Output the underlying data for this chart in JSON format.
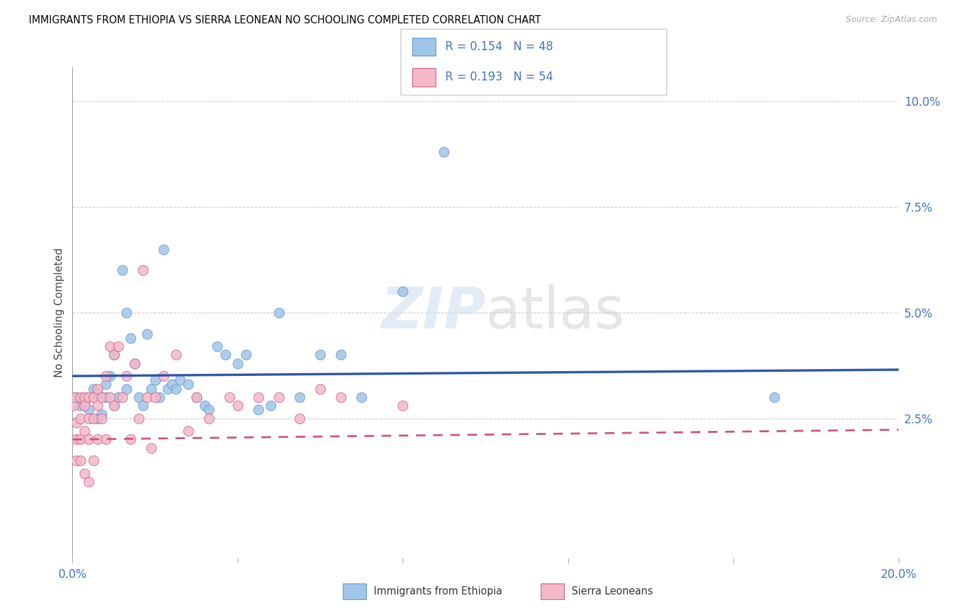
{
  "title": "IMMIGRANTS FROM ETHIOPIA VS SIERRA LEONEAN NO SCHOOLING COMPLETED CORRELATION CHART",
  "source": "Source: ZipAtlas.com",
  "ylabel": "No Schooling Completed",
  "xlim": [
    0.0,
    0.2
  ],
  "ylim": [
    -0.008,
    0.108
  ],
  "yticks_right": [
    0.025,
    0.05,
    0.075,
    0.1
  ],
  "ytick_labels_right": [
    "2.5%",
    "5.0%",
    "7.5%",
    "10.0%"
  ],
  "color_ethiopia": "#9fc5e8",
  "color_sierra": "#f4b8c8",
  "color_eth_border": "#6699cc",
  "color_sle_border": "#cc6688",
  "color_eth_line": "#3355aa",
  "color_sle_line": "#cc5577",
  "ethiopia_x": [
    0.001,
    0.002,
    0.003,
    0.004,
    0.005,
    0.006,
    0.006,
    0.007,
    0.008,
    0.008,
    0.009,
    0.01,
    0.01,
    0.011,
    0.012,
    0.013,
    0.013,
    0.014,
    0.015,
    0.016,
    0.017,
    0.018,
    0.019,
    0.02,
    0.021,
    0.022,
    0.023,
    0.024,
    0.025,
    0.026,
    0.028,
    0.03,
    0.032,
    0.033,
    0.035,
    0.037,
    0.04,
    0.042,
    0.045,
    0.048,
    0.05,
    0.055,
    0.06,
    0.065,
    0.07,
    0.08,
    0.09,
    0.17
  ],
  "ethiopia_y": [
    0.03,
    0.028,
    0.029,
    0.027,
    0.032,
    0.025,
    0.031,
    0.026,
    0.03,
    0.033,
    0.035,
    0.028,
    0.04,
    0.03,
    0.06,
    0.05,
    0.032,
    0.044,
    0.038,
    0.03,
    0.028,
    0.045,
    0.032,
    0.034,
    0.03,
    0.065,
    0.032,
    0.033,
    0.032,
    0.034,
    0.033,
    0.03,
    0.028,
    0.027,
    0.042,
    0.04,
    0.038,
    0.04,
    0.027,
    0.028,
    0.05,
    0.03,
    0.04,
    0.04,
    0.03,
    0.055,
    0.088,
    0.03
  ],
  "sierra_x": [
    0.0003,
    0.0005,
    0.001,
    0.001,
    0.001,
    0.002,
    0.002,
    0.002,
    0.002,
    0.003,
    0.003,
    0.003,
    0.003,
    0.004,
    0.004,
    0.004,
    0.004,
    0.005,
    0.005,
    0.005,
    0.006,
    0.006,
    0.006,
    0.007,
    0.007,
    0.008,
    0.008,
    0.009,
    0.009,
    0.01,
    0.01,
    0.011,
    0.012,
    0.013,
    0.014,
    0.015,
    0.016,
    0.017,
    0.018,
    0.019,
    0.02,
    0.022,
    0.025,
    0.028,
    0.03,
    0.033,
    0.038,
    0.04,
    0.045,
    0.05,
    0.055,
    0.06,
    0.065,
    0.08
  ],
  "sierra_y": [
    0.028,
    0.03,
    0.024,
    0.02,
    0.015,
    0.03,
    0.025,
    0.02,
    0.015,
    0.03,
    0.028,
    0.022,
    0.012,
    0.03,
    0.025,
    0.02,
    0.01,
    0.03,
    0.025,
    0.015,
    0.032,
    0.028,
    0.02,
    0.03,
    0.025,
    0.035,
    0.02,
    0.042,
    0.03,
    0.04,
    0.028,
    0.042,
    0.03,
    0.035,
    0.02,
    0.038,
    0.025,
    0.06,
    0.03,
    0.018,
    0.03,
    0.035,
    0.04,
    0.022,
    0.03,
    0.025,
    0.03,
    0.028,
    0.03,
    0.03,
    0.025,
    0.032,
    0.03,
    0.028
  ]
}
